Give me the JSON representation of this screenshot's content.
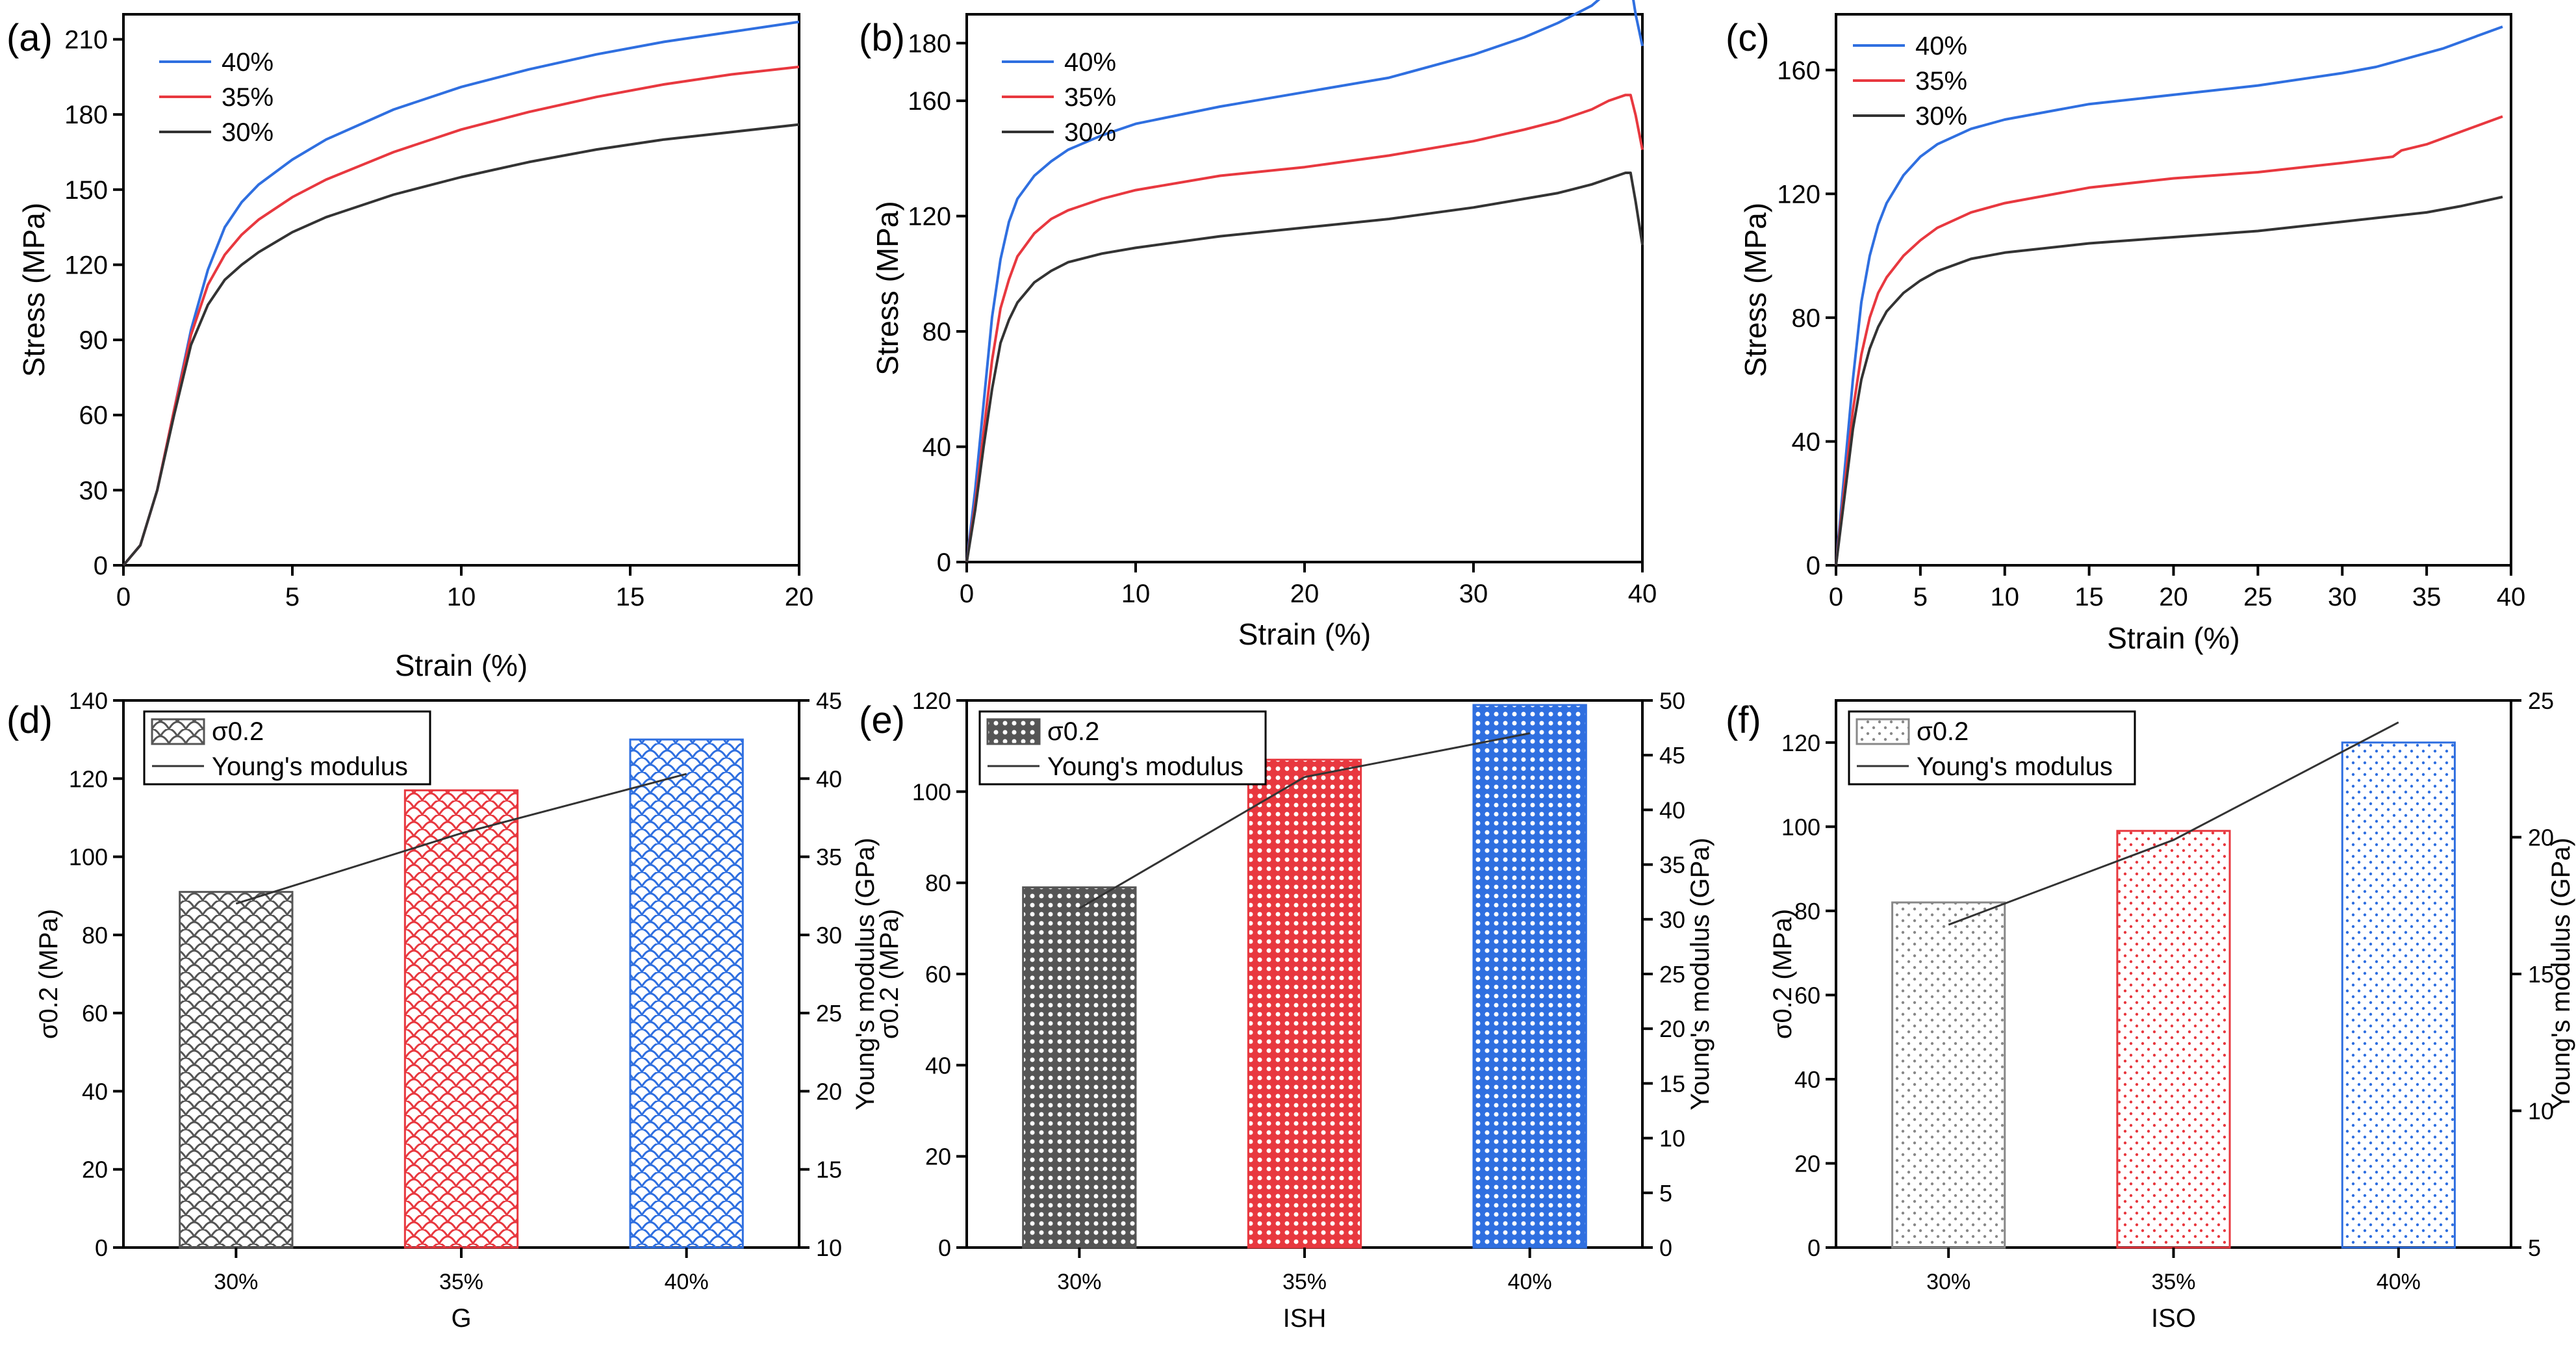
{
  "figure": {
    "description_free": true,
    "colors": {
      "s40": "#2F6FE0",
      "s35": "#E8383F",
      "s30": "#333333",
      "axis": "#000000"
    }
  },
  "chart_data": [
    {
      "id": "a",
      "panel_label": "(a)",
      "type": "line",
      "xlabel": "Strain (%)",
      "ylabel": "Stress (MPa)",
      "xlim": [
        0,
        20
      ],
      "ylim": [
        0,
        220
      ],
      "xticks": [
        0,
        5,
        10,
        15,
        20
      ],
      "yticks": [
        0,
        30,
        60,
        90,
        120,
        150,
        180,
        210
      ],
      "series": [
        {
          "name": "40%",
          "color": "#2F6FE0",
          "x": [
            0,
            0.5,
            1,
            1.5,
            2,
            2.5,
            3,
            3.5,
            4,
            5,
            6,
            8,
            10,
            12,
            14,
            16,
            18,
            20
          ],
          "y": [
            0,
            8,
            30,
            62,
            94,
            118,
            135,
            145,
            152,
            162,
            170,
            182,
            191,
            198,
            204,
            209,
            213,
            217
          ]
        },
        {
          "name": "35%",
          "color": "#E8383F",
          "x": [
            0,
            0.5,
            1,
            1.5,
            2,
            2.5,
            3,
            3.5,
            4,
            5,
            6,
            8,
            10,
            12,
            14,
            16,
            18,
            20
          ],
          "y": [
            0,
            8,
            30,
            62,
            92,
            112,
            124,
            132,
            138,
            147,
            154,
            165,
            174,
            181,
            187,
            192,
            196,
            199
          ]
        },
        {
          "name": "30%",
          "color": "#333333",
          "x": [
            0,
            0.5,
            1,
            1.5,
            2,
            2.5,
            3,
            3.5,
            4,
            5,
            6,
            8,
            10,
            12,
            14,
            16,
            18,
            20
          ],
          "y": [
            0,
            8,
            30,
            60,
            88,
            104,
            114,
            120,
            125,
            133,
            139,
            148,
            155,
            161,
            166,
            170,
            173,
            176
          ]
        }
      ]
    },
    {
      "id": "b",
      "panel_label": "(b)",
      "type": "line",
      "xlabel": "Strain (%)",
      "ylabel": "Stress (MPa)",
      "xlim": [
        0,
        40
      ],
      "ylim": [
        0,
        190
      ],
      "xticks": [
        0,
        10,
        20,
        30,
        40
      ],
      "yticks": [
        0,
        40,
        80,
        120,
        160,
        180
      ],
      "series": [
        {
          "name": "40%",
          "color": "#2F6FE0",
          "x": [
            0,
            0.5,
            1,
            1.5,
            2,
            2.5,
            3,
            4,
            5,
            6,
            8,
            10,
            15,
            20,
            25,
            30,
            33,
            35,
            37,
            38,
            39,
            39.3,
            39.6,
            40
          ],
          "y": [
            0,
            25,
            55,
            85,
            105,
            118,
            126,
            134,
            139,
            143,
            148,
            152,
            158,
            163,
            168,
            176,
            182,
            187,
            193,
            198,
            201,
            201,
            190,
            179
          ]
        },
        {
          "name": "35%",
          "color": "#E8383F",
          "x": [
            0,
            0.5,
            1,
            1.5,
            2,
            2.5,
            3,
            4,
            5,
            6,
            8,
            10,
            15,
            20,
            25,
            30,
            33,
            35,
            37,
            38,
            39,
            39.3,
            39.6,
            40
          ],
          "y": [
            0,
            20,
            45,
            70,
            88,
            98,
            106,
            114,
            119,
            122,
            126,
            129,
            134,
            137,
            141,
            146,
            150,
            153,
            157,
            160,
            162,
            162,
            155,
            143
          ]
        },
        {
          "name": "30%",
          "color": "#333333",
          "x": [
            0,
            0.5,
            1,
            1.5,
            2,
            2.5,
            3,
            4,
            5,
            6,
            8,
            10,
            15,
            20,
            25,
            30,
            33,
            35,
            37,
            38,
            39,
            39.3,
            39.6,
            40
          ],
          "y": [
            0,
            18,
            40,
            60,
            76,
            84,
            90,
            97,
            101,
            104,
            107,
            109,
            113,
            116,
            119,
            123,
            126,
            128,
            131,
            133,
            135,
            135,
            125,
            110
          ]
        }
      ]
    },
    {
      "id": "c",
      "panel_label": "(c)",
      "type": "line",
      "xlabel": "Strain (%)",
      "ylabel": "Stress (MPa)",
      "xlim": [
        0,
        40
      ],
      "ylim": [
        0,
        178
      ],
      "xticks": [
        0,
        5,
        10,
        15,
        20,
        25,
        30,
        35,
        40
      ],
      "yticks": [
        0,
        40,
        80,
        120,
        160
      ],
      "series": [
        {
          "name": "40%",
          "color": "#2F6FE0",
          "x": [
            0,
            0.5,
            1,
            1.5,
            2,
            2.5,
            3,
            4,
            5,
            6,
            8,
            10,
            15,
            20,
            25,
            30,
            32,
            34,
            36,
            38,
            39.5
          ],
          "y": [
            0,
            30,
            60,
            85,
            100,
            110,
            117,
            126,
            132,
            136,
            141,
            144,
            149,
            152,
            155,
            159,
            161,
            164,
            167,
            171,
            174
          ]
        },
        {
          "name": "35%",
          "color": "#E8383F",
          "x": [
            0,
            0.5,
            1,
            1.5,
            2,
            2.5,
            3,
            4,
            5,
            6,
            8,
            10,
            15,
            20,
            25,
            30,
            33,
            33.5,
            35,
            37,
            39.5
          ],
          "y": [
            0,
            25,
            50,
            68,
            80,
            88,
            93,
            100,
            105,
            109,
            114,
            117,
            122,
            125,
            127,
            130,
            132,
            134,
            136,
            140,
            145
          ]
        },
        {
          "name": "30%",
          "color": "#333333",
          "x": [
            0,
            0.5,
            1,
            1.5,
            2,
            2.5,
            3,
            4,
            5,
            6,
            8,
            10,
            15,
            20,
            25,
            30,
            35,
            37,
            39.5
          ],
          "y": [
            0,
            22,
            44,
            60,
            70,
            77,
            82,
            88,
            92,
            95,
            99,
            101,
            104,
            106,
            108,
            111,
            114,
            116,
            119
          ]
        }
      ]
    },
    {
      "id": "d",
      "panel_label": "(d)",
      "type": "bar",
      "xlabel": "G",
      "ylabel": "σ0.2 (MPa)",
      "y2label": "Young's modulus (GPa)",
      "categories": [
        "30%",
        "35%",
        "40%"
      ],
      "ylim": [
        0,
        140
      ],
      "yticks": [
        0,
        20,
        40,
        60,
        80,
        100,
        120,
        140
      ],
      "y2lim": [
        10,
        45
      ],
      "y2ticks": [
        10,
        15,
        20,
        25,
        30,
        35,
        40,
        45
      ],
      "bar_series": {
        "name": "σ0.2",
        "values": [
          91,
          117,
          130
        ]
      },
      "line_series": {
        "name": "Young's modulus",
        "values": [
          32.0,
          36.5,
          40.3
        ]
      },
      "bar_colors": [
        "#555555",
        "#E8383F",
        "#2F6FE0"
      ],
      "pattern": "scale"
    },
    {
      "id": "e",
      "panel_label": "(e)",
      "type": "bar",
      "xlabel": "ISH",
      "ylabel": "σ0.2 (MPa)",
      "y2label": "Young's modulus (GPa)",
      "categories": [
        "30%",
        "35%",
        "40%"
      ],
      "ylim": [
        0,
        120
      ],
      "yticks": [
        0,
        20,
        40,
        60,
        80,
        100,
        120
      ],
      "y2lim": [
        0,
        50
      ],
      "y2ticks": [
        0,
        5,
        10,
        15,
        20,
        25,
        30,
        35,
        40,
        45,
        50
      ],
      "bar_series": {
        "name": "σ0.2",
        "values": [
          79,
          107,
          119
        ]
      },
      "line_series": {
        "name": "Young's modulus",
        "values": [
          31,
          43,
          47
        ]
      },
      "bar_colors": [
        "#555555",
        "#E8383F",
        "#2F6FE0"
      ],
      "pattern": "dense"
    },
    {
      "id": "f",
      "panel_label": "(f)",
      "type": "bar",
      "xlabel": "ISO",
      "ylabel": "σ0.2 (MPa)",
      "y2label": "Young's modulus (GPa)",
      "categories": [
        "30%",
        "35%",
        "40%"
      ],
      "ylim": [
        0,
        130
      ],
      "yticks": [
        0,
        20,
        40,
        60,
        80,
        100,
        120
      ],
      "y2lim": [
        5,
        25
      ],
      "y2ticks": [
        5,
        10,
        15,
        20,
        25
      ],
      "bar_series": {
        "name": "σ0.2",
        "values": [
          82,
          99,
          120
        ]
      },
      "line_series": {
        "name": "Young's modulus",
        "values": [
          16.8,
          19.9,
          24.2
        ]
      },
      "bar_colors": [
        "#888888",
        "#E8383F",
        "#2F6FE0"
      ],
      "pattern": "dots"
    }
  ]
}
